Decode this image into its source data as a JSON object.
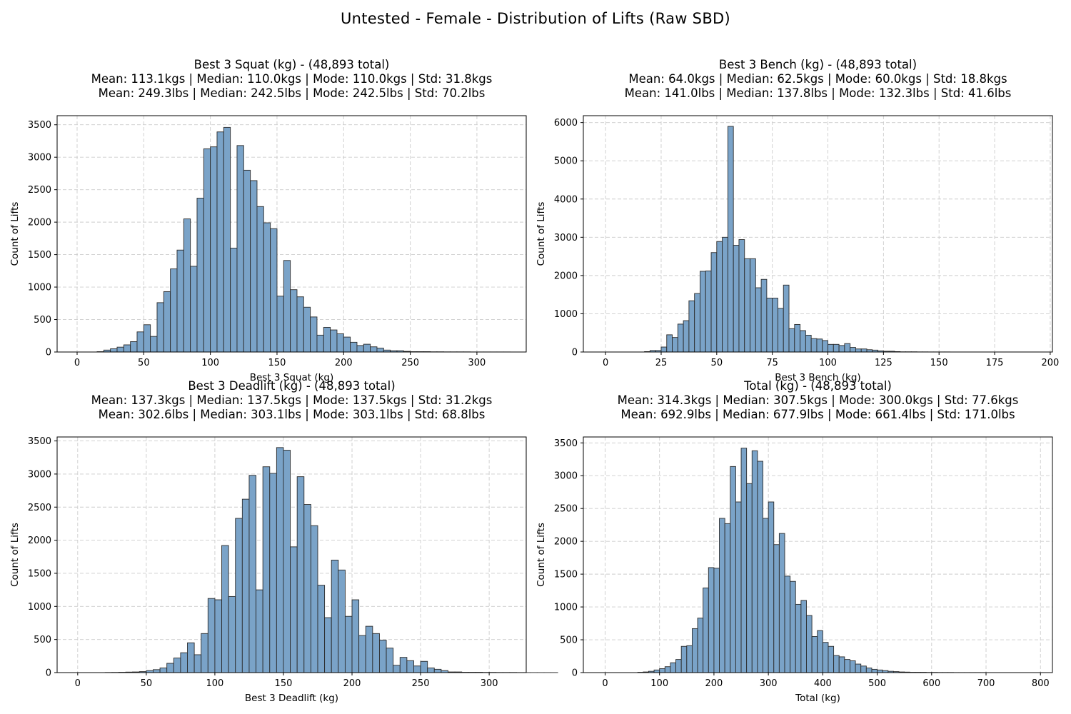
{
  "suptitle": "Untested - Female - Distribution of Lifts (Raw SBD)",
  "style": {
    "bar_fill": "#7aa3c8",
    "bar_edge": "#2b2b2b",
    "grid": "#cccccc"
  },
  "chart_data": [
    {
      "type": "bar",
      "title": "Best 3 Squat (kg) - (48,893 total)",
      "subtitle_kg": "Mean: 113.1kgs | Median: 110.0kgs | Mode: 110.0kgs | Std: 31.8kgs",
      "subtitle_lbs": "Mean: 249.3lbs | Median: 242.5lbs | Mode: 242.5lbs | Std: 70.2lbs",
      "xlabel": "Best 3 Squat (kg)",
      "ylabel": "Count of Lifts",
      "xlim": [
        -15,
        337
      ],
      "ylim": [
        0,
        3640
      ],
      "xticks": [
        0,
        50,
        100,
        150,
        200,
        250,
        300
      ],
      "yticks": [
        0,
        500,
        1000,
        1500,
        2000,
        2500,
        3000,
        3500
      ],
      "grid": true,
      "bin_start": 15,
      "bin_width": 5,
      "values": [
        5,
        30,
        50,
        75,
        110,
        160,
        310,
        420,
        240,
        760,
        930,
        1280,
        1570,
        2050,
        1320,
        2370,
        3130,
        3160,
        3390,
        3460,
        1600,
        3180,
        2800,
        2640,
        2240,
        1990,
        1900,
        860,
        1410,
        960,
        850,
        690,
        540,
        260,
        380,
        340,
        280,
        230,
        150,
        100,
        120,
        80,
        60,
        30,
        20,
        20,
        10,
        5,
        5,
        5,
        3,
        3,
        2,
        2,
        2,
        2,
        1,
        1,
        1,
        1,
        1,
        1
      ]
    },
    {
      "type": "bar",
      "title": "Best 3 Bench (kg) - (48,893 total)",
      "subtitle_kg": "Mean: 64.0kgs | Median: 62.5kgs | Mode: 60.0kgs | Std: 18.8kgs",
      "subtitle_lbs": "Mean: 141.0lbs | Median: 137.8lbs | Mode: 132.3lbs | Std: 41.6lbs",
      "xlabel": "Best 3 Bench (kg)",
      "ylabel": "Count of Lifts",
      "xlim": [
        -10,
        201
      ],
      "ylim": [
        0,
        6180
      ],
      "xticks": [
        0,
        25,
        50,
        75,
        100,
        125,
        150,
        175,
        200
      ],
      "yticks": [
        0,
        1000,
        2000,
        3000,
        4000,
        5000,
        6000
      ],
      "grid": true,
      "bin_start": 17.5,
      "bin_width": 2.5,
      "values": [
        10,
        40,
        40,
        130,
        450,
        380,
        730,
        820,
        1340,
        1530,
        2110,
        2120,
        2600,
        2890,
        3000,
        5900,
        2790,
        2940,
        2440,
        2440,
        1680,
        1900,
        1410,
        1410,
        1140,
        1750,
        610,
        720,
        560,
        440,
        350,
        340,
        300,
        200,
        200,
        170,
        220,
        120,
        80,
        80,
        60,
        50,
        30,
        20,
        20,
        10,
        5,
        5,
        5,
        3,
        3,
        2,
        2,
        2,
        2,
        1,
        1,
        1,
        1,
        1,
        1,
        1,
        1,
        1,
        1,
        1,
        1,
        1,
        1,
        1,
        1
      ]
    },
    {
      "type": "bar",
      "title": "Best 3 Deadlift (kg) - (48,893 total)",
      "subtitle_kg": "Mean: 137.3kgs | Median: 137.5kgs | Mode: 137.5kgs | Std: 31.2kgs",
      "subtitle_lbs": "Mean: 302.6lbs | Median: 303.1lbs | Mode: 303.1lbs | Std: 68.8lbs",
      "xlabel": "Best 3 Deadlift (kg)",
      "ylabel": "Count of Lifts",
      "xlim": [
        -15,
        327
      ],
      "ylim": [
        0,
        3560
      ],
      "xticks": [
        0,
        50,
        100,
        150,
        200,
        250,
        300
      ],
      "yticks": [
        0,
        500,
        1000,
        1500,
        2000,
        2500,
        3000,
        3500
      ],
      "grid": true,
      "bin_start": 20,
      "bin_width": 5,
      "values": [
        2,
        3,
        5,
        8,
        10,
        15,
        30,
        45,
        70,
        140,
        220,
        300,
        450,
        270,
        590,
        1120,
        1100,
        1920,
        1150,
        2330,
        2620,
        2980,
        1250,
        3110,
        3010,
        3400,
        3360,
        1900,
        2960,
        2540,
        2220,
        1320,
        830,
        1700,
        1550,
        850,
        1100,
        560,
        700,
        590,
        490,
        370,
        110,
        230,
        180,
        100,
        170,
        70,
        50,
        30,
        10,
        10,
        5,
        5,
        5,
        3,
        3,
        2,
        2,
        2,
        1,
        1,
        1,
        1,
        1,
        1
      ]
    },
    {
      "type": "bar",
      "title": "Total (kg) - (48,893 total)",
      "subtitle_kg": "Mean: 314.3kgs | Median: 307.5kgs | Mode: 300.0kgs | Std: 77.6kgs",
      "subtitle_lbs": "Mean: 692.9lbs | Median: 677.9lbs | Mode: 661.4lbs | Std: 171.0lbs",
      "xlabel": "Total (kg)",
      "ylabel": "Count of Lifts",
      "xlim": [
        -40,
        822
      ],
      "ylim": [
        0,
        3590
      ],
      "xticks": [
        0,
        100,
        200,
        300,
        400,
        500,
        600,
        700,
        800
      ],
      "yticks": [
        0,
        500,
        1000,
        1500,
        2000,
        2500,
        3000,
        3500
      ],
      "grid": true,
      "bin_start": 60,
      "bin_width": 10,
      "values": [
        5,
        10,
        20,
        40,
        60,
        90,
        150,
        200,
        400,
        410,
        670,
        830,
        1290,
        1600,
        1590,
        2350,
        2270,
        3140,
        2600,
        3420,
        2880,
        3380,
        3220,
        2350,
        2600,
        1950,
        2120,
        1470,
        1390,
        1040,
        1100,
        870,
        550,
        640,
        460,
        400,
        260,
        240,
        200,
        180,
        130,
        100,
        70,
        50,
        40,
        30,
        20,
        15,
        10,
        8,
        5,
        5,
        5,
        3,
        3,
        2,
        2,
        2,
        1,
        1,
        1,
        1,
        1,
        1
      ]
    }
  ]
}
